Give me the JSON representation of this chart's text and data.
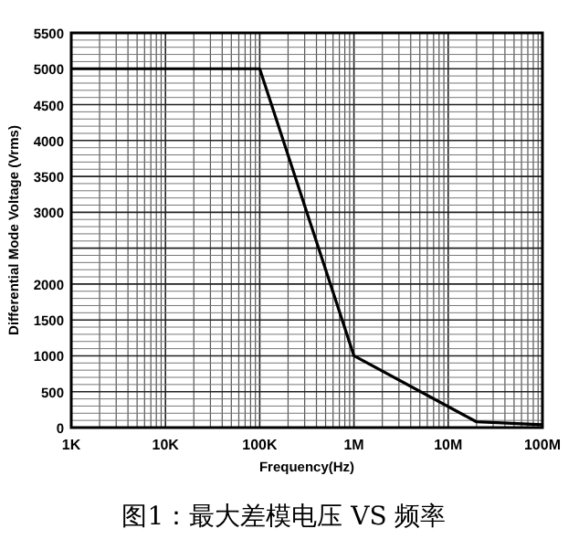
{
  "chart_data": {
    "type": "line",
    "xlabel": "Frequency(Hz)",
    "ylabel": "Differential Mode Voltage (Vrms)",
    "log": "x",
    "grid": true,
    "marker": "none",
    "line_style": "solid",
    "x": [
      1000,
      100000,
      1000000,
      20000000,
      100000000
    ],
    "series": [
      {
        "color": "#000000",
        "values": [
          5000,
          5000,
          1000,
          80,
          40
        ]
      }
    ],
    "xlim": [
      1000,
      100000000
    ],
    "xticks": [
      {
        "value": 1000,
        "label": "1K"
      },
      {
        "value": 10000,
        "label": "10K"
      },
      {
        "value": 100000,
        "label": "100K"
      },
      {
        "value": 1000000,
        "label": "1M"
      },
      {
        "value": 10000000,
        "label": "10M"
      },
      {
        "value": 100000000,
        "label": "100M"
      }
    ],
    "ylim": [
      0,
      5500
    ],
    "yticks": [
      0,
      500,
      1000,
      1500,
      2000,
      {
        "value": 2500,
        "label": null
      },
      3000,
      3500,
      4000,
      4500,
      5000,
      5500
    ],
    "annotations": [
      "图1：最大差模电压 VS 频率"
    ]
  }
}
